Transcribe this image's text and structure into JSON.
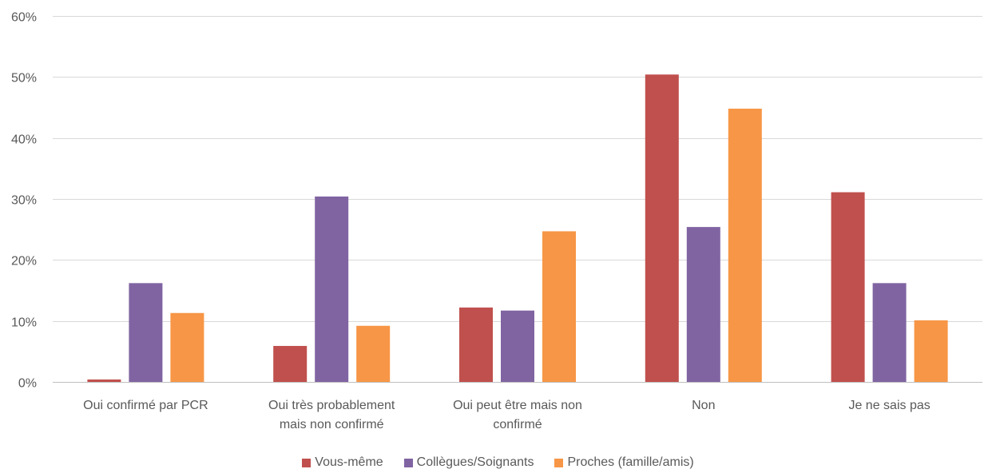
{
  "chart_data": {
    "type": "bar",
    "categories": [
      [
        "Oui confirmé par PCR"
      ],
      [
        "Oui très probablement",
        "mais non confirmé"
      ],
      [
        "Oui peut être mais non",
        "confirmé"
      ],
      [
        "Non"
      ],
      [
        "Je ne sais pas"
      ]
    ],
    "series": [
      {
        "name": "Vous-même",
        "color": "#C0504D",
        "values": [
          0.4,
          5.9,
          12.2,
          50.4,
          31.1
        ]
      },
      {
        "name": "Collègues/Soignants",
        "color": "#8064A2",
        "values": [
          16.2,
          30.4,
          11.7,
          25.4,
          16.2
        ]
      },
      {
        "name": "Proches (famille/amis)",
        "color": "#F79646",
        "values": [
          11.3,
          9.2,
          24.7,
          44.8,
          10.1
        ]
      }
    ],
    "ylim": [
      0,
      60
    ],
    "yticks": [
      0,
      10,
      20,
      30,
      40,
      50,
      60
    ],
    "ytick_labels": [
      "0%",
      "10%",
      "20%",
      "30%",
      "40%",
      "50%",
      "60%"
    ],
    "grid": true,
    "legend_position": "bottom",
    "title": "",
    "xlabel": "",
    "ylabel": ""
  }
}
